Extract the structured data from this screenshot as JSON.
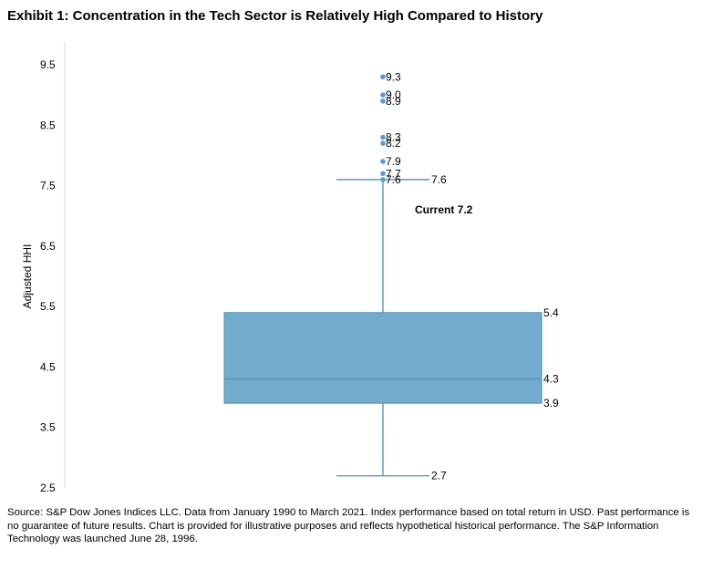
{
  "title": "Exhibit 1: Concentration in the Tech Sector is Relatively High Compared to History",
  "source": "Source: S&P Dow Jones Indices LLC. Data from January 1990 to March 2021. Index performance based on total return in USD. Past performance is no guarantee of future results. Chart is provided for illustrative purposes and reflects hypothetical historical performance. The S&P Information Technology was launched June 28, 1996.",
  "chart_data": {
    "type": "box",
    "title": "Exhibit 1: Concentration in the Tech Sector is Relatively High Compared to History",
    "ylabel": "Adjusted HHI",
    "xlabel": "",
    "ylim": [
      2.5,
      9.5
    ],
    "y_ticks": [
      "9.5",
      "8.5",
      "7.5",
      "6.5",
      "5.5",
      "4.5",
      "3.5",
      "2.5"
    ],
    "grid": false,
    "box": {
      "whisker_low": 2.7,
      "q1": 3.9,
      "median": 4.3,
      "q3": 5.4,
      "whisker_high": 7.6,
      "whisker_low_label": "2.7",
      "q1_label": "3.9",
      "median_label": "4.3",
      "q3_label": "5.4",
      "whisker_high_label": "7.6"
    },
    "outliers": [
      {
        "value": 9.3,
        "label": "9.3"
      },
      {
        "value": 9.0,
        "label": "9.0"
      },
      {
        "value": 8.9,
        "label": "8.9"
      },
      {
        "value": 8.3,
        "label": "8.3"
      },
      {
        "value": 8.2,
        "label": "8.2"
      },
      {
        "value": 7.9,
        "label": "7.9"
      },
      {
        "value": 7.7,
        "label": "7.7"
      },
      {
        "value": 7.6,
        "label": "7.6"
      }
    ],
    "annotation": {
      "text": "Current 7.2",
      "value": 7.2
    },
    "colors": {
      "box_fill": "#72abcc",
      "box_stroke": "#4f8fb4",
      "whisker": "#4f8fb4",
      "outlier": "#5b9bd5"
    }
  }
}
